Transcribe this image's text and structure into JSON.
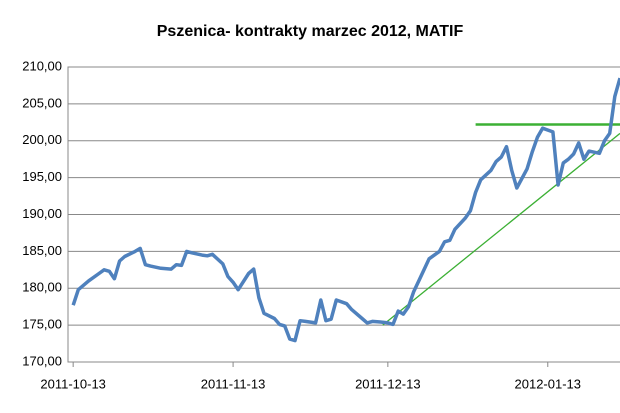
{
  "chart_data": {
    "type": "line",
    "title": "Pszenica- kontrakty marzec 2012, MATIF",
    "x": [
      "2011-10-13",
      "2011-10-14",
      "2011-10-16",
      "2011-10-18",
      "2011-10-19",
      "2011-10-20",
      "2011-10-21",
      "2011-10-22",
      "2011-10-23",
      "2011-10-25",
      "2011-10-26",
      "2011-10-27",
      "2011-10-28",
      "2011-10-30",
      "2011-11-01",
      "2011-11-02",
      "2011-11-03",
      "2011-11-04",
      "2011-11-05",
      "2011-11-07",
      "2011-11-08",
      "2011-11-09",
      "2011-11-11",
      "2011-11-12",
      "2011-11-13",
      "2011-11-14",
      "2011-11-16",
      "2011-11-17",
      "2011-11-18",
      "2011-11-19",
      "2011-11-21",
      "2011-11-22",
      "2011-11-23",
      "2011-11-24",
      "2011-11-25",
      "2011-11-26",
      "2011-11-27",
      "2011-11-29",
      "2011-11-30",
      "2011-12-01",
      "2011-12-02",
      "2011-12-03",
      "2011-12-05",
      "2011-12-06",
      "2011-12-08",
      "2011-12-09",
      "2011-12-10",
      "2011-12-12",
      "2011-12-13",
      "2011-12-14",
      "2011-12-15",
      "2011-12-16",
      "2011-12-17",
      "2011-12-18",
      "2011-12-19",
      "2011-12-20",
      "2011-12-21",
      "2011-12-23",
      "2011-12-24",
      "2011-12-25",
      "2011-12-26",
      "2011-12-28",
      "2011-12-29",
      "2011-12-30",
      "2011-12-31",
      "2012-01-02",
      "2012-01-03",
      "2012-01-04",
      "2012-01-05",
      "2012-01-06",
      "2012-01-07",
      "2012-01-09",
      "2012-01-10",
      "2012-01-11",
      "2012-01-12",
      "2012-01-14",
      "2012-01-15",
      "2012-01-16",
      "2012-01-17",
      "2012-01-18",
      "2012-01-19",
      "2012-01-20",
      "2012-01-21",
      "2012-01-23",
      "2012-01-24",
      "2012-01-25",
      "2012-01-26",
      "2012-01-27"
    ],
    "values": [
      177.7,
      179.8,
      181,
      182,
      182.5,
      182.3,
      181.3,
      183.7,
      184.3,
      185,
      185.4,
      183.2,
      183,
      182.7,
      182.6,
      183.2,
      183.1,
      185,
      184.8,
      184.5,
      184.4,
      184.6,
      183.3,
      181.6,
      180.8,
      179.8,
      182,
      182.6,
      178.7,
      176.6,
      175.9,
      175.1,
      174.9,
      173.1,
      172.9,
      175.6,
      175.5,
      175.3,
      178.4,
      175.6,
      175.8,
      178.4,
      177.9,
      177.1,
      175.9,
      175.3,
      175.5,
      175.4,
      175.3,
      175.1,
      176.9,
      176.5,
      177.5,
      179.5,
      181,
      182.5,
      184,
      185,
      186.3,
      186.5,
      188,
      189.5,
      190.5,
      193,
      194.7,
      196,
      197.2,
      197.8,
      199.2,
      196,
      193.6,
      196.2,
      198.5,
      200.5,
      201.7,
      201.2,
      194,
      197,
      197.5,
      198.2,
      199.7,
      197.5,
      198.6,
      198.3,
      200,
      201,
      206,
      208.5
    ],
    "color": "#4f81bd",
    "trendlines": [
      {
        "x": [
          "2011-12-30",
          "2012-01-27"
        ],
        "values": [
          202.2,
          202.2
        ],
        "color": "#3cb034"
      },
      {
        "x": [
          "2011-12-12",
          "2012-01-27"
        ],
        "values": [
          175,
          201
        ],
        "color": "#3cb034"
      }
    ],
    "xlim": [
      "2011-10-12",
      "2012-01-27"
    ],
    "xticks": [
      "2011-10-13",
      "2011-11-13",
      "2011-12-13",
      "2012-01-13"
    ],
    "ylim": [
      170,
      210
    ],
    "yticks": [
      {
        "value": 170,
        "label": "170,00"
      },
      {
        "value": 175,
        "label": "175,00"
      },
      {
        "value": 180,
        "label": "180,00"
      },
      {
        "value": 185,
        "label": "185,00"
      },
      {
        "value": 190,
        "label": "190,00"
      },
      {
        "value": 195,
        "label": "195,00"
      },
      {
        "value": 200,
        "label": "200,00"
      },
      {
        "value": 205,
        "label": "205,00"
      },
      {
        "value": 210,
        "label": "210,00"
      }
    ],
    "grid": true
  }
}
